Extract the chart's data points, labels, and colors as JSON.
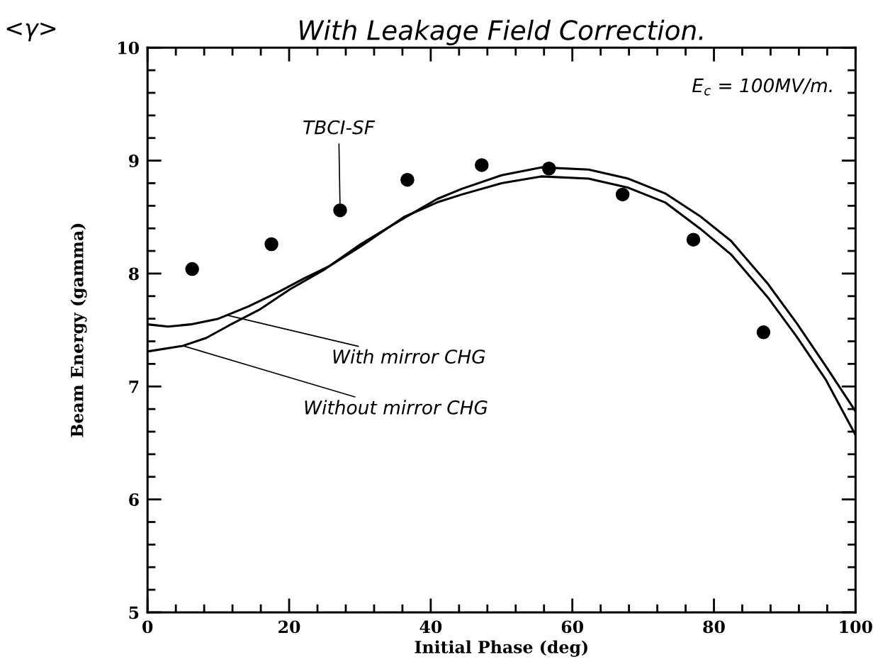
{
  "chart_data": {
    "type": "line",
    "title": "With Leakage Field Correction.",
    "xlabel": "Initial Phase (deg)",
    "ylabel": "Beam Energy (gamma)",
    "xlim": [
      0,
      100
    ],
    "ylim": [
      5,
      10
    ],
    "xticks": [
      0,
      20,
      40,
      60,
      80,
      100
    ],
    "yticks": [
      5,
      6,
      7,
      8,
      9,
      10
    ],
    "grid": false,
    "legend": false,
    "series": [
      {
        "color": "#000000",
        "x": [
          0,
          2.9,
          6.1,
          10.0,
          14.3,
          18.6,
          22.2,
          25.8,
          30.1,
          36.2,
          40.9,
          44.4,
          50.0,
          55.6,
          62.3,
          67.9,
          73.1,
          78.0,
          82.4,
          87.6,
          91.7,
          95.8,
          100
        ],
        "values": [
          7.55,
          7.53,
          7.55,
          7.6,
          7.71,
          7.84,
          7.96,
          8.07,
          8.24,
          8.5,
          8.63,
          8.7,
          8.8,
          8.86,
          8.84,
          8.76,
          8.63,
          8.4,
          8.17,
          7.79,
          7.44,
          7.06,
          6.57
        ]
      },
      {
        "color": "#000000",
        "x": [
          0,
          5.0,
          8.3,
          11.5,
          15.8,
          20.1,
          25.1,
          30.1,
          36.2,
          40.9,
          44.4,
          50.0,
          55.6,
          62.3,
          67.9,
          73.1,
          78.0,
          82.4,
          87.6,
          91.7,
          95.8,
          100
        ],
        "values": [
          7.31,
          7.36,
          7.43,
          7.54,
          7.68,
          7.86,
          8.04,
          8.26,
          8.49,
          8.66,
          8.75,
          8.87,
          8.94,
          8.92,
          8.84,
          8.71,
          8.51,
          8.29,
          7.91,
          7.56,
          7.18,
          6.78
        ]
      },
      {
        "type": "scatter",
        "color": "#000000",
        "marker": "circle",
        "x": [
          6.3,
          17.5,
          27.2,
          36.7,
          47.2,
          56.7,
          67.1,
          77.1,
          87.0
        ],
        "values": [
          8.04,
          8.26,
          8.56,
          8.83,
          8.96,
          8.93,
          8.7,
          8.3,
          7.48
        ]
      }
    ],
    "annotations": [
      {
        "text": "TBCI-SF",
        "x": 27.2,
        "y": 8.56
      },
      {
        "text": "With mirror CHG",
        "x": 11.3,
        "y": 7.63
      },
      {
        "text": "Without mirror CHG",
        "x": 5.0,
        "y": 7.36
      },
      "E$_{c}$ = 100MV/m.",
      "<γ>"
    ]
  }
}
